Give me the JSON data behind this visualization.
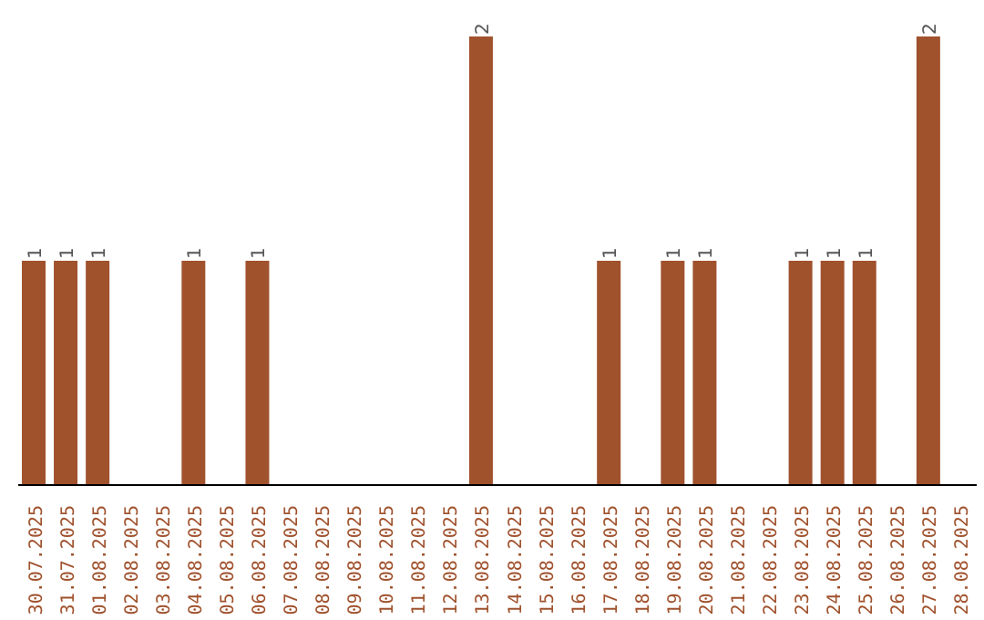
{
  "chart_data": {
    "type": "bar",
    "categories": [
      "30.07.2025",
      "31.07.2025",
      "01.08.2025",
      "02.08.2025",
      "03.08.2025",
      "04.08.2025",
      "05.08.2025",
      "06.08.2025",
      "07.08.2025",
      "08.08.2025",
      "09.08.2025",
      "10.08.2025",
      "11.08.2025",
      "12.08.2025",
      "13.08.2025",
      "14.08.2025",
      "15.08.2025",
      "16.08.2025",
      "17.08.2025",
      "18.08.2025",
      "19.08.2025",
      "20.08.2025",
      "21.08.2025",
      "22.08.2025",
      "23.08.2025",
      "24.08.2025",
      "25.08.2025",
      "26.08.2025",
      "27.08.2025",
      "28.08.2025"
    ],
    "values": [
      1,
      1,
      1,
      0,
      0,
      1,
      0,
      1,
      0,
      0,
      0,
      0,
      0,
      0,
      2,
      0,
      0,
      0,
      1,
      0,
      1,
      1,
      0,
      0,
      1,
      1,
      1,
      0,
      2,
      0
    ],
    "value_labels": [
      "1",
      "1",
      "1",
      null,
      null,
      "1",
      null,
      "1",
      null,
      null,
      null,
      null,
      null,
      null,
      "2",
      null,
      null,
      null,
      "1",
      null,
      "1",
      "1",
      null,
      null,
      "1",
      "1",
      "1",
      null,
      "2",
      null
    ],
    "color": "#a0522d",
    "grid": false,
    "legend": false
  }
}
